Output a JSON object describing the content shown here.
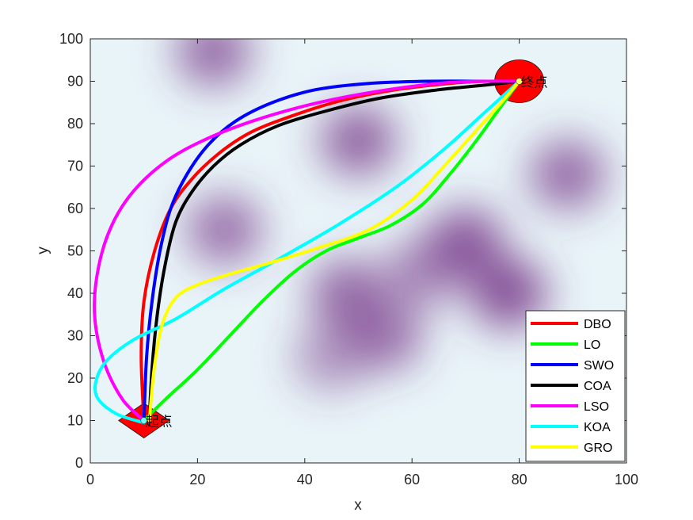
{
  "chart_data": {
    "type": "line",
    "xlabel": "x",
    "ylabel": "y",
    "xlim": [
      0,
      100
    ],
    "ylim": [
      0,
      100
    ],
    "xticks": [
      "0",
      "20",
      "40",
      "60",
      "80",
      "100"
    ],
    "yticks": [
      "0",
      "10",
      "20",
      "30",
      "40",
      "50",
      "60",
      "70",
      "80",
      "90",
      "100"
    ],
    "grid": false,
    "legend_position": "bottom-right",
    "start": {
      "x": 10,
      "y": 10,
      "label": "起点",
      "color": "#ff0000"
    },
    "goal": {
      "x": 80,
      "y": 90,
      "label": "终点",
      "color": "#ff0000"
    },
    "background": {
      "type": "heatmap",
      "colors": [
        "#e8f4f8",
        "#7a3d8c"
      ],
      "peaks": [
        {
          "x": 23,
          "y": 97,
          "h": 0.75
        },
        {
          "x": 25,
          "y": 55,
          "h": 0.7
        },
        {
          "x": 50,
          "y": 76,
          "h": 0.8
        },
        {
          "x": 89,
          "y": 68,
          "h": 0.75
        },
        {
          "x": 70,
          "y": 52,
          "h": 0.85
        },
        {
          "x": 78,
          "y": 40,
          "h": 0.9
        },
        {
          "x": 48,
          "y": 40,
          "h": 0.75
        },
        {
          "x": 55,
          "y": 30,
          "h": 0.7
        },
        {
          "x": 45,
          "y": 25,
          "h": 0.5
        },
        {
          "x": 62,
          "y": 45,
          "h": 0.6
        }
      ]
    },
    "series": [
      {
        "name": "DBO",
        "color": "#ff0000",
        "x": [
          10,
          9.5,
          10,
          12,
          15,
          19,
          24,
          30,
          38,
          47,
          57,
          67,
          74,
          80
        ],
        "y": [
          10,
          25,
          38,
          50,
          60,
          67,
          73,
          78,
          82,
          85.5,
          88,
          89.5,
          90,
          90
        ]
      },
      {
        "name": "LO",
        "color": "#00ff00",
        "x": [
          10,
          14,
          20,
          26,
          32,
          38,
          44,
          50,
          56,
          62,
          67,
          72,
          76,
          80
        ],
        "y": [
          10,
          15,
          22,
          30,
          38,
          45,
          50,
          53,
          56,
          61,
          68,
          76,
          83,
          90
        ]
      },
      {
        "name": "SWO",
        "color": "#0000ff",
        "x": [
          10,
          10.5,
          11.5,
          13,
          15,
          18,
          22,
          27,
          34,
          42,
          52,
          63,
          72,
          80
        ],
        "y": [
          10,
          25,
          38,
          50,
          60,
          68,
          75,
          80.5,
          85,
          88,
          89.5,
          90,
          90,
          90
        ]
      },
      {
        "name": "COA",
        "color": "#000000",
        "x": [
          11,
          11.5,
          12.5,
          14,
          16,
          19,
          23,
          28,
          35,
          44,
          54,
          65,
          73,
          80
        ],
        "y": [
          10,
          22,
          35,
          47,
          57,
          64,
          70,
          75,
          79.5,
          83,
          86,
          88,
          89,
          90
        ]
      },
      {
        "name": "LSO",
        "color": "#ff00ff",
        "x": [
          10,
          6,
          2.5,
          0.8,
          1.5,
          4,
          8,
          14,
          21,
          30,
          41,
          53,
          65,
          74,
          80
        ],
        "y": [
          10,
          15,
          24,
          35,
          46,
          56,
          64,
          71,
          76,
          80.5,
          84.5,
          87.5,
          89.5,
          90,
          90
        ]
      },
      {
        "name": "KOA",
        "color": "#00ffff",
        "x": [
          10,
          5,
          1.5,
          1,
          3,
          8,
          16,
          25,
          35,
          46,
          57,
          66,
          73,
          80
        ],
        "y": [
          9.5,
          11.5,
          15,
          19,
          24,
          29,
          34,
          41,
          48,
          56,
          65,
          74,
          82,
          90
        ]
      },
      {
        "name": "GRO",
        "color": "#ffff00",
        "x": [
          11,
          12,
          13.5,
          16,
          20,
          26,
          33,
          42,
          52,
          60,
          66,
          71,
          76,
          80
        ],
        "y": [
          10,
          23,
          33,
          39,
          42,
          44.5,
          47,
          50.5,
          55,
          62,
          70,
          77,
          84,
          90
        ]
      }
    ]
  }
}
